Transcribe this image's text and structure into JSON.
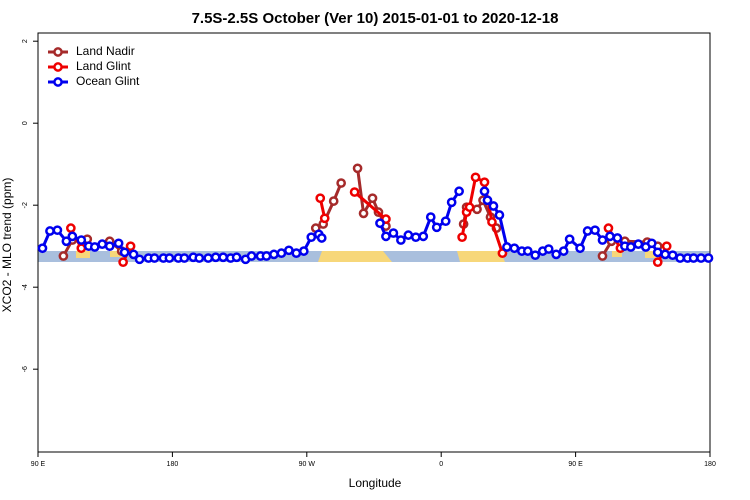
{
  "chart_data": {
    "type": "line",
    "title": "7.5S-2.5S October (Ver 10)   2015-01-01 to 2020-12-18",
    "x_label": "Longitude",
    "y_label": "XCO2 - MLO trend (ppm)",
    "xlim": [
      90,
      540
    ],
    "ylim": [
      -8.02,
      2.2
    ],
    "xticks": [
      {
        "value": 90,
        "label": "90 E"
      },
      180,
      {
        "value": 270,
        "label": "90 W"
      },
      {
        "value": 360,
        "label": "0"
      },
      {
        "value": 450,
        "label": "90 E"
      },
      {
        "value": 540,
        "label": "180"
      }
    ],
    "yticks": [
      2,
      0,
      -2,
      -4,
      -6
    ],
    "legend": "top-left",
    "series": [
      {
        "name": "Land Nadir",
        "color": "#a52a2a",
        "x": [
          107,
          113,
          123,
          null,
          138,
          146,
          null,
          276,
          281,
          288,
          293,
          null,
          304,
          308,
          314,
          318,
          323,
          null,
          375,
          377,
          384,
          388,
          393,
          397,
          null,
          468,
          474,
          null,
          483,
          498,
          505
        ],
        "values": [
          -3.24,
          -2.85,
          -2.83,
          null,
          -2.88,
          -3.12,
          null,
          -2.56,
          -2.46,
          -1.9,
          -1.46,
          null,
          -1.1,
          -2.2,
          -1.83,
          -2.17,
          -2.51,
          null,
          -2.46,
          -2.05,
          -2.1,
          -1.88,
          -2.29,
          -2.56,
          null,
          -3.24,
          -2.88,
          null,
          -2.88,
          -2.9,
          -3.0
        ]
      },
      {
        "name": "Land Glint",
        "color": "#ee0000",
        "x": [
          112,
          119,
          null,
          147,
          152,
          null,
          279,
          282,
          null,
          302,
          323,
          null,
          374,
          377,
          379,
          383,
          389,
          394,
          401,
          null,
          472,
          480,
          null,
          505,
          511
        ],
        "values": [
          -2.56,
          -3.05,
          null,
          -3.39,
          -3.0,
          null,
          -1.83,
          -2.32,
          null,
          -1.68,
          -2.34,
          null,
          -2.78,
          -2.17,
          -2.05,
          -1.32,
          -1.44,
          -2.41,
          -3.17,
          null,
          -2.56,
          -3.05,
          null,
          -3.39,
          -3.0
        ]
      },
      {
        "name": "Ocean Glint",
        "color": "#0000ee",
        "x": [
          93,
          98,
          103,
          109,
          113,
          119,
          124,
          128,
          133,
          138,
          144,
          148,
          154,
          158,
          164,
          168,
          174,
          178,
          184,
          188,
          194,
          198,
          204,
          209,
          214,
          219,
          223,
          229,
          233,
          239,
          243,
          248,
          253,
          258,
          263,
          268,
          273,
          278,
          280,
          null,
          319,
          323,
          328,
          333,
          338,
          343,
          348,
          353,
          357,
          363,
          367,
          372,
          null,
          389,
          391,
          395,
          399,
          404,
          409,
          414,
          418,
          423,
          428,
          432,
          437,
          442,
          446,
          453,
          458,
          463,
          468,
          473,
          478,
          483,
          487,
          492,
          497,
          501,
          505,
          510,
          515,
          520,
          525,
          529,
          534,
          539
        ],
        "values": [
          -3.05,
          -2.63,
          -2.61,
          -2.88,
          -2.76,
          -2.85,
          -3.0,
          -3.02,
          -2.95,
          -3.0,
          -2.93,
          -3.15,
          -3.2,
          -3.32,
          -3.29,
          -3.29,
          -3.29,
          -3.29,
          -3.29,
          -3.29,
          -3.27,
          -3.29,
          -3.29,
          -3.27,
          -3.27,
          -3.29,
          -3.27,
          -3.32,
          -3.24,
          -3.24,
          -3.24,
          -3.2,
          -3.17,
          -3.1,
          -3.17,
          -3.12,
          -2.78,
          -2.71,
          -2.8,
          null,
          -2.44,
          -2.76,
          -2.68,
          -2.85,
          -2.73,
          -2.78,
          -2.76,
          -2.29,
          -2.54,
          -2.39,
          -1.93,
          -1.66,
          null,
          -1.66,
          -1.88,
          -2.02,
          -2.24,
          -3.02,
          -3.05,
          -3.12,
          -3.12,
          -3.22,
          -3.12,
          -3.07,
          -3.2,
          -3.12,
          -2.83,
          -3.05,
          -2.63,
          -2.61,
          -2.85,
          -2.76,
          -2.8,
          -3.0,
          -3.02,
          -2.95,
          -3.02,
          -2.93,
          -3.15,
          -3.2,
          -3.22,
          -3.29,
          -3.29,
          -3.29,
          -3.29,
          -3.29
        ]
      }
    ]
  }
}
